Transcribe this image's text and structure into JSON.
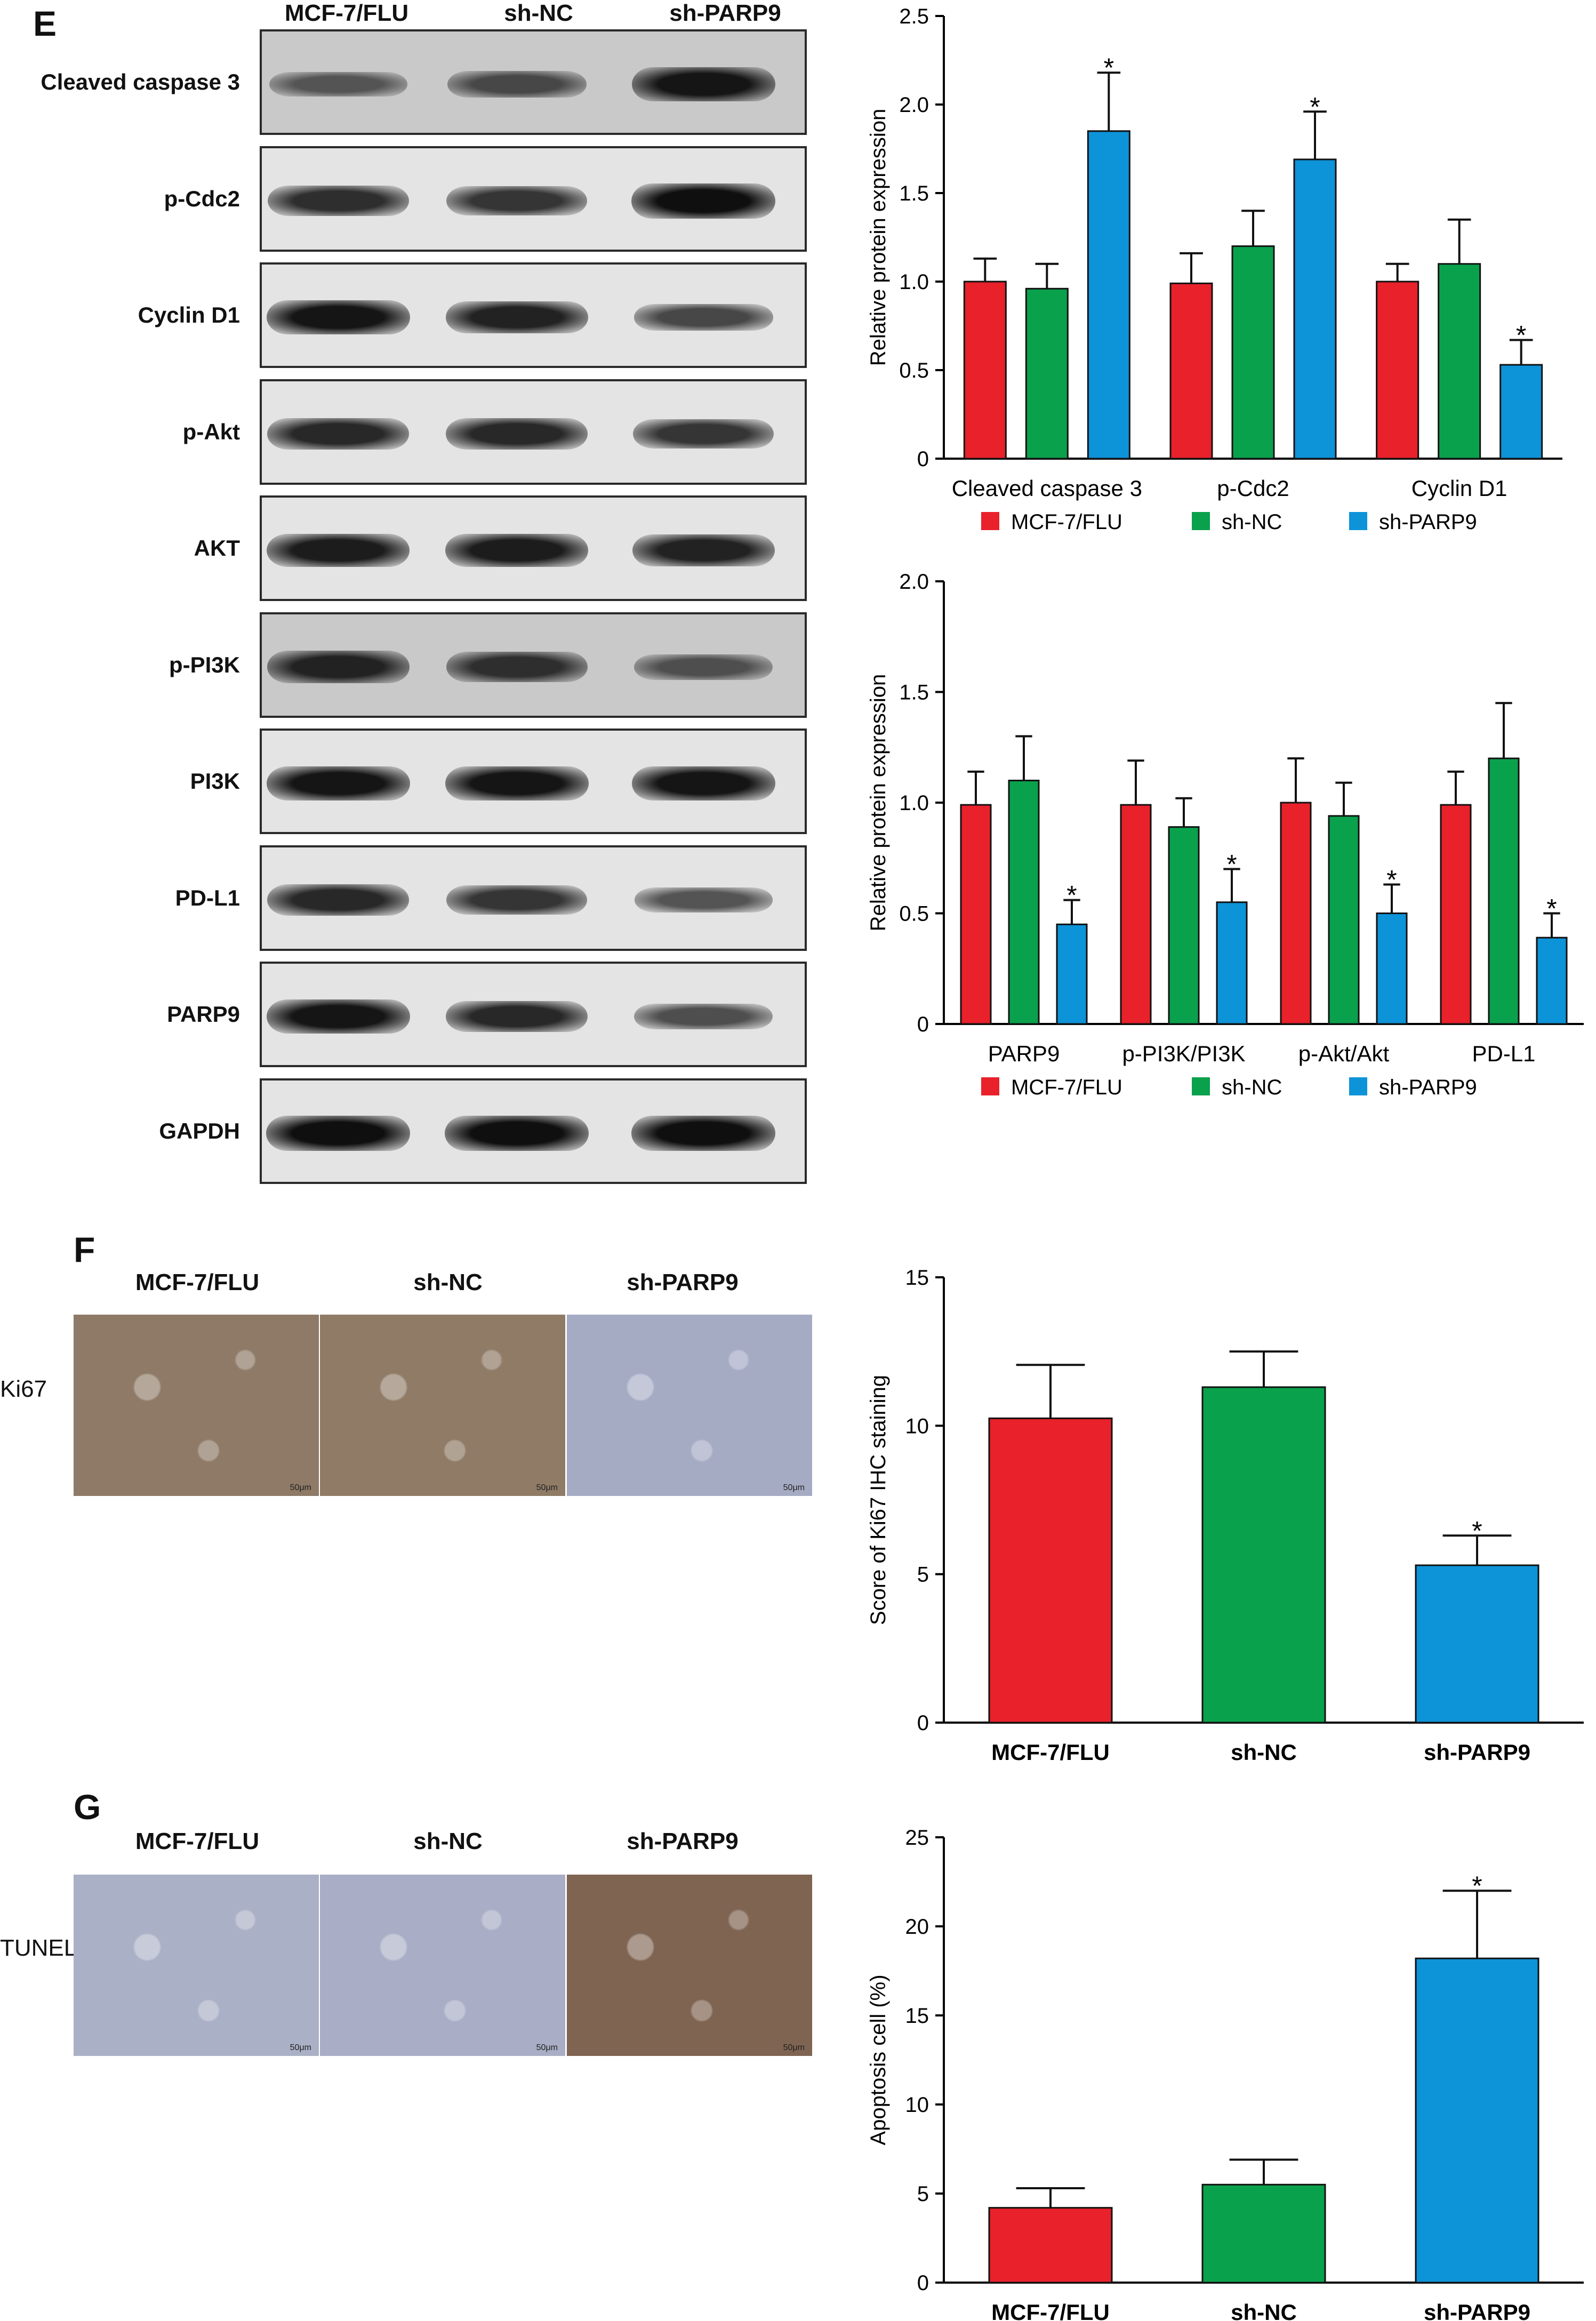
{
  "panels": {
    "E": "E",
    "F": "F",
    "G": "G"
  },
  "blot": {
    "lanes": [
      "MCF-7/FLU",
      "sh-NC",
      "sh-PARP9"
    ],
    "rows": [
      {
        "label": "Cleaved caspase 3",
        "intensity": [
          0.45,
          0.55,
          0.95
        ]
      },
      {
        "label": "p-Cdc2",
        "intensity": [
          0.75,
          0.7,
          1.0
        ]
      },
      {
        "label": "Cyclin D1",
        "intensity": [
          0.95,
          0.85,
          0.55
        ]
      },
      {
        "label": "p-Akt",
        "intensity": [
          0.8,
          0.8,
          0.7
        ]
      },
      {
        "label": "AKT",
        "intensity": [
          0.9,
          0.9,
          0.85
        ]
      },
      {
        "label": "p-PI3K",
        "intensity": [
          0.85,
          0.75,
          0.5
        ]
      },
      {
        "label": "PI3K",
        "intensity": [
          0.95,
          0.95,
          0.95
        ]
      },
      {
        "label": "PD-L1",
        "intensity": [
          0.8,
          0.7,
          0.45
        ]
      },
      {
        "label": "PARP9",
        "intensity": [
          0.95,
          0.8,
          0.5
        ]
      },
      {
        "label": "GAPDH",
        "intensity": [
          1.0,
          1.0,
          1.0
        ]
      }
    ]
  },
  "ihc": {
    "F": {
      "row_label": "Ki67",
      "headers": [
        "MCF-7/FLU",
        "sh-NC",
        "sh-PARP9"
      ],
      "scale_bar": "50μm",
      "tones": [
        "#8e7a66",
        "#8f7b66",
        "#a6abc4"
      ]
    },
    "G": {
      "row_label": "TUNEL",
      "headers": [
        "MCF-7/FLU",
        "sh-NC",
        "sh-PARP9"
      ],
      "scale_bar": "50μm",
      "tones": [
        "#aab0c6",
        "#a9adc5",
        "#7f6452"
      ]
    }
  },
  "colors": {
    "MCF-7/FLU": "#e8212b",
    "sh-NC": "#0aa14c",
    "sh-PARP9": "#0d93d8"
  },
  "chart_data": [
    {
      "type": "bar",
      "categories": [
        "Cleaved caspase 3",
        "p-Cdc2",
        "Cyclin D1"
      ],
      "ylabel": "Relative protein expression",
      "ylim": [
        0,
        2.5
      ],
      "yticks": [
        "0",
        "0.5",
        "1.0",
        "1.5",
        "2.0",
        "2.5"
      ],
      "series": [
        {
          "name": "MCF-7/FLU",
          "values": [
            1.0,
            0.99,
            1.0
          ],
          "err": [
            0.13,
            0.17,
            0.1
          ],
          "star": [
            false,
            false,
            false
          ]
        },
        {
          "name": "sh-NC",
          "values": [
            0.96,
            1.2,
            1.1
          ],
          "err": [
            0.14,
            0.2,
            0.25
          ],
          "star": [
            false,
            false,
            false
          ]
        },
        {
          "name": "sh-PARP9",
          "values": [
            1.85,
            1.69,
            0.53
          ],
          "err": [
            0.33,
            0.27,
            0.14
          ],
          "star": [
            true,
            true,
            true
          ]
        }
      ]
    },
    {
      "type": "bar",
      "categories": [
        "PARP9",
        "p-PI3K/PI3K",
        "p-Akt/Akt",
        "PD-L1"
      ],
      "ylabel": "Relative protein expression",
      "ylim": [
        0,
        2.0
      ],
      "yticks": [
        "0",
        "0.5",
        "1.0",
        "1.5",
        "2.0"
      ],
      "series": [
        {
          "name": "MCF-7/FLU",
          "values": [
            0.99,
            0.99,
            1.0,
            0.99
          ],
          "err": [
            0.15,
            0.2,
            0.2,
            0.15
          ],
          "star": [
            false,
            false,
            false,
            false
          ]
        },
        {
          "name": "sh-NC",
          "values": [
            1.1,
            0.89,
            0.94,
            1.2
          ],
          "err": [
            0.2,
            0.13,
            0.15,
            0.25
          ],
          "star": [
            false,
            false,
            false,
            false
          ]
        },
        {
          "name": "sh-PARP9",
          "values": [
            0.45,
            0.55,
            0.5,
            0.39
          ],
          "err": [
            0.11,
            0.15,
            0.13,
            0.11
          ],
          "star": [
            true,
            true,
            true,
            true
          ]
        }
      ]
    },
    {
      "type": "bar",
      "categories": [
        "MCF-7/FLU",
        "sh-NC",
        "sh-PARP9"
      ],
      "ylabel": "Score of Ki67 IHC staining",
      "ylim": [
        0,
        15
      ],
      "yticks": [
        "0",
        "5",
        "10",
        "15"
      ],
      "values": [
        10.25,
        11.3,
        5.3
      ],
      "err": [
        1.8,
        1.2,
        1.0
      ],
      "star": [
        false,
        false,
        true
      ]
    },
    {
      "type": "bar",
      "categories": [
        "MCF-7/FLU",
        "sh-NC",
        "sh-PARP9"
      ],
      "ylabel": "Apoptosis cell (%)",
      "ylim": [
        0,
        25
      ],
      "yticks": [
        "0",
        "5",
        "10",
        "15",
        "20",
        "25"
      ],
      "values": [
        4.2,
        5.5,
        18.2
      ],
      "err": [
        1.1,
        1.4,
        3.8
      ],
      "star": [
        false,
        false,
        true
      ]
    }
  ]
}
